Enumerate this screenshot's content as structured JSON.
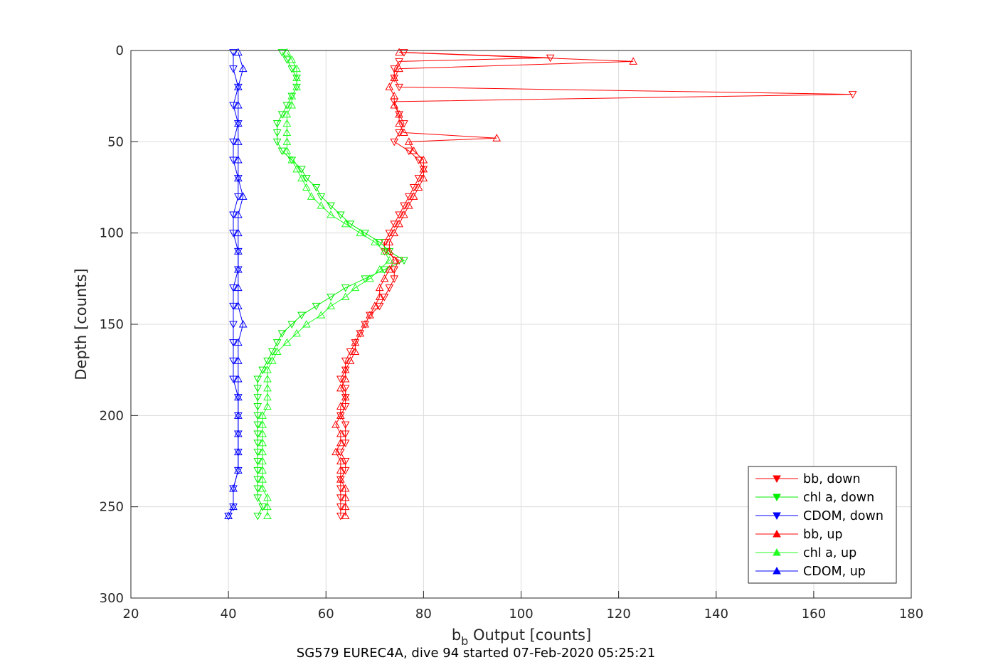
{
  "chart_data": {
    "type": "line",
    "title": "",
    "xlabel": "b_b Output [counts]",
    "xlabel_main": "b",
    "xlabel_sub": "b",
    "xlabel_rest": " Output [counts]",
    "ylabel": "Depth [counts]",
    "caption": "SG579 EUREC4A, dive 94 started 07-Feb-2020 05:25:21",
    "xlim": [
      20,
      180
    ],
    "ylim": [
      0,
      300
    ],
    "y_reversed": true,
    "grid": true,
    "legend_position": "bottom-right",
    "x_ticks": [
      "20",
      "40",
      "60",
      "80",
      "100",
      "120",
      "140",
      "160",
      "180"
    ],
    "y_ticks": [
      "0",
      "50",
      "100",
      "150",
      "200",
      "250",
      "300"
    ],
    "series": [
      {
        "name": "bb, down",
        "color": "#ff0000",
        "marker": "triangle-down",
        "depth": [
          1,
          4,
          6,
          10,
          15,
          20,
          24,
          28,
          35,
          40,
          45,
          50,
          55,
          60,
          65,
          70,
          75,
          80,
          85,
          90,
          95,
          100,
          105,
          110,
          115,
          120,
          125,
          130,
          135,
          140,
          145,
          150,
          155,
          160,
          165,
          170,
          175,
          180,
          185,
          190,
          195,
          200,
          205,
          210,
          215,
          220,
          225,
          230,
          235,
          240,
          245,
          250,
          255
        ],
        "value": [
          76,
          106,
          75,
          74,
          74,
          75,
          168,
          74,
          75,
          76,
          75,
          74,
          77,
          79,
          80,
          79,
          78,
          77,
          76,
          75,
          74,
          73,
          72,
          72,
          75,
          74,
          74,
          73,
          72,
          71,
          69,
          68,
          67,
          66,
          65,
          64,
          64,
          63,
          64,
          64,
          64,
          63,
          64,
          64,
          64,
          63,
          64,
          64,
          63,
          63,
          63,
          63,
          63
        ]
      },
      {
        "name": "chl a, down",
        "color": "#00ee00",
        "marker": "triangle-down",
        "depth": [
          1,
          5,
          10,
          15,
          20,
          25,
          30,
          35,
          40,
          45,
          50,
          55,
          60,
          65,
          70,
          75,
          80,
          85,
          90,
          95,
          100,
          105,
          110,
          115,
          120,
          125,
          130,
          135,
          140,
          145,
          150,
          155,
          160,
          165,
          170,
          175,
          180,
          185,
          190,
          195,
          200,
          205,
          210,
          215,
          220,
          225,
          230,
          235,
          240,
          245,
          250,
          255
        ],
        "value": [
          51,
          52,
          53,
          54,
          54,
          53,
          52,
          51,
          50,
          50,
          50,
          51,
          53,
          55,
          56,
          58,
          59,
          61,
          63,
          65,
          68,
          71,
          73,
          76,
          72,
          68,
          64,
          61,
          58,
          55,
          53,
          51,
          50,
          49,
          48,
          47,
          46,
          46,
          46,
          46,
          46,
          46,
          46,
          46,
          46,
          46,
          46,
          46,
          46,
          46,
          47,
          46
        ]
      },
      {
        "name": "CDOM, down",
        "color": "#0000ff",
        "marker": "triangle-down",
        "depth": [
          1,
          10,
          20,
          30,
          40,
          50,
          60,
          70,
          80,
          90,
          100,
          110,
          120,
          130,
          140,
          150,
          160,
          170,
          180,
          190,
          200,
          210,
          220,
          230,
          240,
          250,
          255
        ],
        "value": [
          41,
          41,
          42,
          41,
          42,
          41,
          41,
          42,
          42,
          41,
          41,
          42,
          42,
          41,
          41,
          41,
          41,
          41,
          41,
          42,
          42,
          42,
          42,
          42,
          41,
          41,
          40
        ]
      },
      {
        "name": "bb, up",
        "color": "#ff0000",
        "marker": "triangle-up",
        "depth": [
          255,
          250,
          245,
          240,
          235,
          230,
          225,
          220,
          215,
          210,
          205,
          200,
          195,
          190,
          185,
          180,
          175,
          170,
          165,
          160,
          155,
          150,
          145,
          140,
          135,
          130,
          125,
          120,
          115,
          110,
          105,
          100,
          95,
          90,
          85,
          80,
          75,
          70,
          65,
          60,
          55,
          50,
          48,
          45,
          40,
          35,
          30,
          25,
          20,
          15,
          10,
          6,
          1
        ],
        "value": [
          64,
          64,
          64,
          64,
          63,
          63,
          63,
          62,
          63,
          63,
          62,
          63,
          63,
          64,
          63,
          64,
          64,
          65,
          66,
          66,
          67,
          68,
          69,
          70,
          71,
          71,
          72,
          73,
          74,
          73,
          73,
          74,
          75,
          76,
          77,
          78,
          79,
          80,
          80,
          80,
          78,
          77,
          95,
          76,
          75,
          75,
          74,
          74,
          73,
          74,
          75,
          123,
          75
        ]
      },
      {
        "name": "chl a, up",
        "color": "#22ff22",
        "marker": "triangle-up",
        "depth": [
          255,
          250,
          245,
          240,
          235,
          230,
          225,
          220,
          215,
          210,
          205,
          200,
          195,
          190,
          185,
          180,
          175,
          170,
          165,
          160,
          155,
          150,
          145,
          140,
          135,
          130,
          125,
          120,
          115,
          110,
          105,
          100,
          95,
          90,
          85,
          80,
          75,
          70,
          65,
          60,
          55,
          50,
          45,
          40,
          35,
          30,
          25,
          20,
          15,
          10,
          5,
          1
        ],
        "value": [
          48,
          48,
          48,
          47,
          47,
          47,
          47,
          47,
          47,
          47,
          47,
          47,
          48,
          48,
          48,
          48,
          48,
          49,
          50,
          52,
          54,
          56,
          59,
          61,
          64,
          66,
          69,
          71,
          73,
          72,
          70,
          67,
          64,
          61,
          59,
          57,
          56,
          55,
          54,
          53,
          52,
          52,
          52,
          52,
          52,
          53,
          53,
          54,
          54,
          54,
          53,
          52
        ]
      },
      {
        "name": "CDOM, up",
        "color": "#0000ff",
        "marker": "triangle-up",
        "depth": [
          255,
          250,
          240,
          230,
          220,
          210,
          200,
          190,
          180,
          170,
          160,
          150,
          140,
          130,
          120,
          110,
          100,
          90,
          80,
          70,
          60,
          50,
          40,
          30,
          20,
          10,
          1
        ],
        "value": [
          40,
          41,
          41,
          42,
          42,
          42,
          42,
          42,
          42,
          42,
          42,
          43,
          42,
          42,
          42,
          42,
          42,
          42,
          43,
          42,
          42,
          42,
          42,
          42,
          42,
          43,
          42
        ]
      }
    ]
  }
}
